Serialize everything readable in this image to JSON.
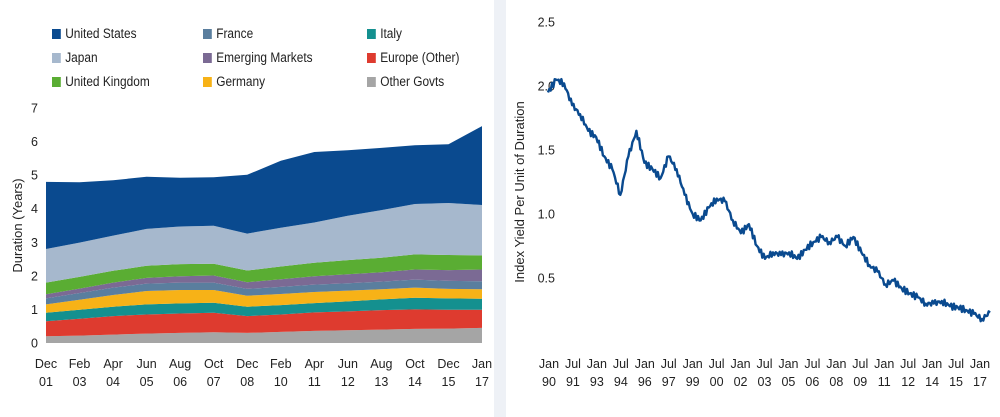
{
  "left_chart": {
    "legend": [
      {
        "label": "United States",
        "color": "#0a4a8f"
      },
      {
        "label": "France",
        "color": "#5a7e9e"
      },
      {
        "label": "Italy",
        "color": "#14908f"
      },
      {
        "label": "Japan",
        "color": "#a6b8cd"
      },
      {
        "label": "Emerging Markets",
        "color": "#7b6a94"
      },
      {
        "label": "Europe (Other)",
        "color": "#de3b2f"
      },
      {
        "label": "United Kingdom",
        "color": "#5aad33"
      },
      {
        "label": "Germany",
        "color": "#f7b217"
      },
      {
        "label": "Other Govts",
        "color": "#a5a5a5"
      }
    ]
  },
  "chart_data": [
    {
      "type": "area",
      "stacked": true,
      "title": "",
      "xlabel": "",
      "ylabel": "Duration (Years)",
      "ylim": [
        0,
        7
      ],
      "yticks": [
        "0",
        "1",
        "2",
        "3",
        "4",
        "5",
        "6",
        "7"
      ],
      "xtick_labels": [
        [
          "Dec",
          "01"
        ],
        [
          "Feb",
          "03"
        ],
        [
          "Apr",
          "04"
        ],
        [
          "Jun",
          "05"
        ],
        [
          "Aug",
          "06"
        ],
        [
          "Oct",
          "07"
        ],
        [
          "Dec",
          "08"
        ],
        [
          "Feb",
          "10"
        ],
        [
          "Apr",
          "11"
        ],
        [
          "Jun",
          "12"
        ],
        [
          "Aug",
          "13"
        ],
        [
          "Oct",
          "14"
        ],
        [
          "Dec",
          "15"
        ],
        [
          "Jan",
          "17"
        ]
      ],
      "x": [
        "Dec 01",
        "Feb 03",
        "Apr 04",
        "Jun 05",
        "Aug 06",
        "Oct 07",
        "Dec 08",
        "Feb 10",
        "Apr 11",
        "Jun 12",
        "Aug 13",
        "Oct 14",
        "Dec 15",
        "Jan 17"
      ],
      "legend_position": "top",
      "grid": false,
      "series": [
        {
          "name": "Other Govts",
          "color": "#a5a5a5",
          "values": [
            0.2,
            0.22,
            0.25,
            0.28,
            0.3,
            0.32,
            0.3,
            0.33,
            0.36,
            0.38,
            0.4,
            0.42,
            0.43,
            0.45
          ]
        },
        {
          "name": "Europe (Other)",
          "color": "#de3b2f",
          "values": [
            0.45,
            0.5,
            0.55,
            0.57,
            0.58,
            0.58,
            0.5,
            0.52,
            0.55,
            0.56,
            0.58,
            0.58,
            0.56,
            0.54
          ]
        },
        {
          "name": "Italy",
          "color": "#14908f",
          "values": [
            0.25,
            0.27,
            0.28,
            0.3,
            0.3,
            0.3,
            0.28,
            0.28,
            0.28,
            0.3,
            0.32,
            0.35,
            0.34,
            0.33
          ]
        },
        {
          "name": "Germany",
          "color": "#f7b217",
          "values": [
            0.25,
            0.3,
            0.35,
            0.4,
            0.4,
            0.38,
            0.33,
            0.33,
            0.33,
            0.32,
            0.3,
            0.3,
            0.28,
            0.28
          ]
        },
        {
          "name": "France",
          "color": "#5a7e9e",
          "values": [
            0.18,
            0.2,
            0.22,
            0.22,
            0.22,
            0.22,
            0.2,
            0.21,
            0.22,
            0.22,
            0.23,
            0.24,
            0.24,
            0.24
          ]
        },
        {
          "name": "Emerging Markets",
          "color": "#7b6a94",
          "values": [
            0.12,
            0.13,
            0.15,
            0.17,
            0.19,
            0.21,
            0.2,
            0.23,
            0.25,
            0.27,
            0.28,
            0.3,
            0.32,
            0.35
          ]
        },
        {
          "name": "United Kingdom",
          "color": "#5aad33",
          "values": [
            0.35,
            0.35,
            0.35,
            0.36,
            0.36,
            0.35,
            0.35,
            0.38,
            0.4,
            0.42,
            0.43,
            0.45,
            0.45,
            0.42
          ]
        },
        {
          "name": "Japan",
          "color": "#a6b8cd",
          "values": [
            1.0,
            1.02,
            1.05,
            1.1,
            1.12,
            1.13,
            1.1,
            1.15,
            1.2,
            1.32,
            1.42,
            1.5,
            1.55,
            1.5
          ]
        },
        {
          "name": "United States",
          "color": "#0a4a8f",
          "values": [
            2.0,
            1.8,
            1.65,
            1.55,
            1.45,
            1.45,
            1.75,
            2.0,
            2.1,
            1.95,
            1.85,
            1.75,
            1.75,
            2.35
          ]
        }
      ]
    },
    {
      "type": "line",
      "title": "",
      "xlabel": "",
      "ylabel": "Index Yield Per Unit of Duration",
      "ylim": [
        0,
        2.5
      ],
      "yticks": [
        "0.5",
        "1.0",
        "1.5",
        "2.0",
        "2.5"
      ],
      "xtick_labels": [
        [
          "Jan",
          "90"
        ],
        [
          "Jul",
          "91"
        ],
        [
          "Jan",
          "93"
        ],
        [
          "Jul",
          "94"
        ],
        [
          "Jan",
          "96"
        ],
        [
          "Jul",
          "97"
        ],
        [
          "Jan",
          "99"
        ],
        [
          "Jul",
          "00"
        ],
        [
          "Jan",
          "02"
        ],
        [
          "Jul",
          "03"
        ],
        [
          "Jan",
          "05"
        ],
        [
          "Jul",
          "06"
        ],
        [
          "Jan",
          "08"
        ],
        [
          "Jul",
          "09"
        ],
        [
          "Jan",
          "11"
        ],
        [
          "Jul",
          "12"
        ],
        [
          "Jan",
          "14"
        ],
        [
          "Jul",
          "15"
        ],
        [
          "Jan",
          "17"
        ]
      ],
      "grid": false,
      "series": [
        {
          "name": "",
          "color": "#0a4a8f",
          "x": [
            1990.0,
            1990.5,
            1991.0,
            1991.5,
            1992.0,
            1992.5,
            1993.0,
            1993.5,
            1994.0,
            1994.5,
            1995.0,
            1995.5,
            1996.0,
            1996.5,
            1997.0,
            1997.5,
            1998.0,
            1998.5,
            1999.0,
            1999.5,
            2000.0,
            2000.5,
            2001.0,
            2001.5,
            2002.0,
            2002.5,
            2003.0,
            2003.5,
            2004.0,
            2004.5,
            2005.0,
            2005.5,
            2006.0,
            2006.5,
            2007.0,
            2007.5,
            2008.0,
            2008.5,
            2009.0,
            2009.5,
            2010.0,
            2010.5,
            2011.0,
            2011.5,
            2012.0,
            2012.5,
            2013.0,
            2013.5,
            2014.0,
            2014.5,
            2015.0,
            2015.5,
            2016.0,
            2016.5,
            2017.0,
            2017.5
          ],
          "y": [
            1.95,
            2.05,
            2.02,
            1.85,
            1.78,
            1.65,
            1.6,
            1.45,
            1.35,
            1.15,
            1.45,
            1.65,
            1.4,
            1.35,
            1.28,
            1.45,
            1.35,
            1.15,
            1.0,
            0.95,
            1.05,
            1.12,
            1.1,
            0.95,
            0.85,
            0.92,
            0.75,
            0.65,
            0.7,
            0.68,
            0.7,
            0.65,
            0.72,
            0.78,
            0.82,
            0.78,
            0.82,
            0.75,
            0.82,
            0.7,
            0.6,
            0.55,
            0.45,
            0.48,
            0.42,
            0.38,
            0.35,
            0.3,
            0.3,
            0.32,
            0.28,
            0.27,
            0.25,
            0.22,
            0.18,
            0.23
          ]
        }
      ]
    }
  ]
}
